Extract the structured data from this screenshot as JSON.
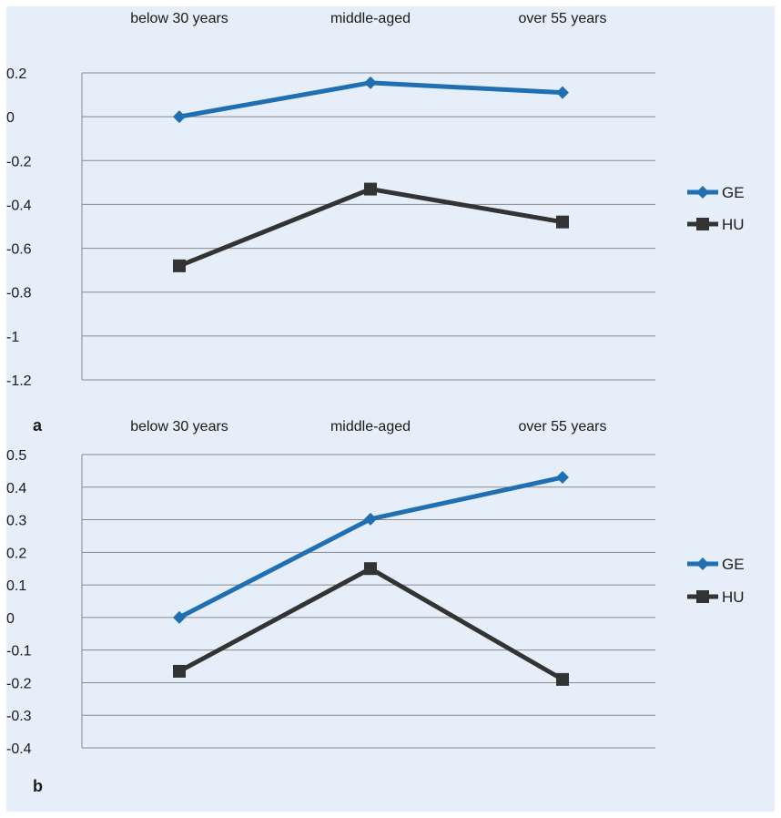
{
  "chart_data": [
    {
      "type": "line",
      "panel_label": "a",
      "categories": [
        "below 30 years",
        "middle-aged",
        "over 55 years"
      ],
      "ylim": [
        -1.2,
        0.2
      ],
      "ytick_step": 0.2,
      "yticks": [
        "0.2",
        "0",
        "-0.2",
        "-0.4",
        "-0.6",
        "-0.8",
        "-1",
        "-1.2"
      ],
      "grid": true,
      "legend_position": "right",
      "series": [
        {
          "name": "GE",
          "color": "#1f6fb2",
          "marker": "diamond",
          "values": [
            0.0,
            0.155,
            0.11
          ]
        },
        {
          "name": "HU",
          "color": "#333333",
          "marker": "square",
          "values": [
            -0.68,
            -0.33,
            -0.48
          ]
        }
      ]
    },
    {
      "type": "line",
      "panel_label": "b",
      "categories": [
        "below 30 years",
        "middle-aged",
        "over 55 years"
      ],
      "ylim": [
        -0.4,
        0.5
      ],
      "ytick_step": 0.1,
      "yticks": [
        "0.5",
        "0.4",
        "0.3",
        "0.2",
        "0.1",
        "0",
        "-0.1",
        "-0.2",
        "-0.3",
        "-0.4"
      ],
      "grid": true,
      "legend_position": "right",
      "series": [
        {
          "name": "GE",
          "color": "#1f6fb2",
          "marker": "diamond",
          "values": [
            0.0,
            0.302,
            0.43
          ]
        },
        {
          "name": "HU",
          "color": "#333333",
          "marker": "square",
          "values": [
            -0.165,
            0.15,
            -0.19
          ]
        }
      ]
    }
  ]
}
